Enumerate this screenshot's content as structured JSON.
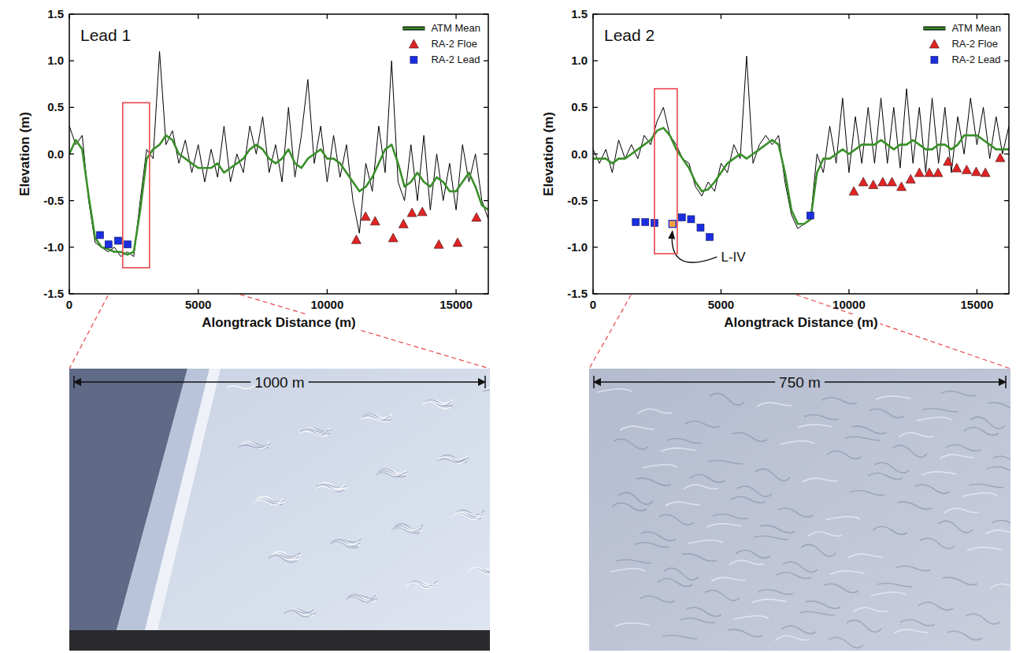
{
  "chart_data": [
    {
      "type": "line",
      "title": "Lead 1",
      "x_label": "Alongtrack Distance (m)",
      "y_label": "Elevation (m)",
      "xlim": [
        0,
        16250
      ],
      "ylim": [
        -1.5,
        1.5
      ],
      "xticks": [
        0,
        5000,
        10000,
        15000
      ],
      "yticks": [
        1.5,
        {
          "value": 1,
          "label": "1.0"
        },
        0.5,
        {
          "value": 0,
          "label": "0.0"
        },
        -0.5,
        {
          "value": -1,
          "label": "-1.0"
        },
        -1.5
      ],
      "legend": "upper right",
      "x": [
        0,
        250,
        500,
        750,
        1000,
        1250,
        1500,
        1750,
        2000,
        2250,
        2500,
        2750,
        3000,
        3250,
        3500,
        3750,
        4000,
        4250,
        4500,
        4750,
        5000,
        5250,
        5500,
        5750,
        6000,
        6250,
        6500,
        6750,
        7000,
        7250,
        7500,
        7750,
        8000,
        8250,
        8500,
        8750,
        9000,
        9250,
        9500,
        9750,
        10000,
        10250,
        10500,
        10750,
        11000,
        11250,
        11500,
        11750,
        12000,
        12250,
        12500,
        12750,
        13000,
        13250,
        13500,
        13750,
        14000,
        14250,
        14500,
        14750,
        15000,
        15250,
        15500,
        15750,
        16000,
        16250
      ],
      "series": [
        {
          "color": "#000000",
          "values": [
            0.3,
            0.1,
            0.2,
            -0.5,
            -0.95,
            -1.0,
            -1.05,
            -1.0,
            -1.1,
            -1.05,
            -1.1,
            -0.5,
            0.05,
            -0.05,
            1.1,
            0.1,
            0.25,
            -0.1,
            0.15,
            -0.2,
            0.1,
            -0.3,
            0.05,
            -0.25,
            0.3,
            -0.3,
            0.0,
            -0.2,
            0.3,
            0.0,
            0.4,
            -0.2,
            0.1,
            -0.3,
            0.5,
            -0.25,
            0.2,
            0.8,
            -0.1,
            0.3,
            -0.3,
            0.2,
            -0.25,
            0.1,
            -0.5,
            -0.85,
            -0.1,
            -0.4,
            0.3,
            -0.2,
            1.0,
            -0.3,
            -0.5,
            0.1,
            -0.5,
            0.2,
            -0.6,
            0.0,
            -0.5,
            -0.1,
            -0.6,
            0.1,
            -0.3,
            0.0,
            -0.5,
            -0.7
          ]
        },
        {
          "name": "ATM Mean",
          "color": "#3a8f2a",
          "values": [
            0.0,
            0.15,
            0.05,
            -0.45,
            -0.9,
            -1.0,
            -1.02,
            -1.05,
            -1.05,
            -1.08,
            -1.05,
            -0.6,
            -0.05,
            0.05,
            0.1,
            0.2,
            0.15,
            0.0,
            -0.05,
            -0.1,
            -0.15,
            -0.15,
            -0.15,
            -0.1,
            -0.2,
            -0.15,
            -0.1,
            -0.05,
            0.05,
            0.1,
            0.05,
            -0.05,
            -0.1,
            -0.05,
            0.05,
            -0.1,
            -0.15,
            -0.05,
            0.0,
            0.05,
            -0.05,
            -0.05,
            -0.1,
            -0.2,
            -0.3,
            -0.4,
            -0.35,
            -0.25,
            -0.1,
            0.05,
            0.1,
            -0.1,
            -0.35,
            -0.3,
            -0.2,
            -0.3,
            -0.35,
            -0.25,
            -0.3,
            -0.4,
            -0.4,
            -0.3,
            -0.2,
            -0.35,
            -0.55,
            -0.6
          ]
        },
        {
          "name": "RA-2 Floe",
          "type": "scatter",
          "marker": "triangle",
          "color": "#e02424",
          "x": [
            11130,
            11490,
            11860,
            12560,
            12960,
            13290,
            13690,
            14330,
            15060,
            15790
          ],
          "values": [
            -0.92,
            -0.67,
            -0.72,
            -0.9,
            -0.75,
            -0.63,
            -0.62,
            -0.97,
            -0.95,
            -0.68
          ]
        },
        {
          "name": "RA-2 Lead",
          "type": "scatter",
          "marker": "square",
          "color": "#1a2ee0",
          "x": [
            1190,
            1520,
            1890,
            2260
          ],
          "values": [
            -0.87,
            -0.97,
            -0.93,
            -0.97
          ]
        }
      ],
      "highlight": {
        "xlim": [
          2070,
          3110
        ],
        "ylim": [
          -1.22,
          0.55
        ]
      },
      "photo": {
        "scale_label": "1000 m"
      }
    },
    {
      "type": "line",
      "title": "Lead 2",
      "x_label": "Alongtrack Distance (m)",
      "y_label": "Elevation (m)",
      "xlim": [
        0,
        16250
      ],
      "ylim": [
        -1.5,
        1.5
      ],
      "xticks": [
        0,
        5000,
        10000,
        15000
      ],
      "yticks": [
        1.5,
        {
          "value": 1,
          "label": "1.0"
        },
        0.5,
        {
          "value": 0,
          "label": "0.0"
        },
        -0.5,
        {
          "value": -1,
          "label": "-1.0"
        },
        -1.5
      ],
      "legend": "upper right",
      "x": [
        0,
        250,
        500,
        750,
        1000,
        1250,
        1500,
        1750,
        2000,
        2250,
        2500,
        2750,
        3000,
        3250,
        3500,
        3750,
        4000,
        4250,
        4500,
        4750,
        5000,
        5250,
        5500,
        5750,
        6000,
        6250,
        6500,
        6750,
        7000,
        7250,
        7500,
        7750,
        8000,
        8250,
        8500,
        8750,
        9000,
        9250,
        9500,
        9750,
        10000,
        10250,
        10500,
        10750,
        11000,
        11250,
        11500,
        11750,
        12000,
        12250,
        12500,
        12750,
        13000,
        13250,
        13500,
        13750,
        14000,
        14250,
        14500,
        14750,
        15000,
        15250,
        15500,
        15750,
        16000,
        16250
      ],
      "series": [
        {
          "color": "#000000",
          "values": [
            0.05,
            -0.1,
            0.05,
            -0.2,
            0.15,
            -0.05,
            0.1,
            -0.05,
            0.2,
            0.1,
            0.35,
            0.5,
            0.2,
            0.1,
            -0.05,
            -0.1,
            -0.35,
            -0.45,
            -0.3,
            -0.4,
            -0.1,
            -0.2,
            0.1,
            -0.05,
            1.05,
            -0.1,
            0.1,
            0.2,
            0.1,
            0.2,
            -0.3,
            -0.65,
            -0.8,
            -0.75,
            -0.7,
            0.0,
            -0.2,
            0.3,
            -0.1,
            0.6,
            -0.2,
            0.4,
            -0.1,
            0.5,
            -0.1,
            0.6,
            -0.1,
            0.5,
            -0.15,
            0.7,
            -0.1,
            0.5,
            -0.2,
            0.6,
            -0.1,
            0.5,
            -0.2,
            0.4,
            0.0,
            0.6,
            0.1,
            0.5,
            -0.05,
            0.4,
            0.0,
            0.3
          ]
        },
        {
          "name": "ATM Mean",
          "color": "#3a8f2a",
          "values": [
            -0.05,
            -0.05,
            -0.05,
            -0.1,
            -0.05,
            -0.05,
            0.0,
            0.05,
            0.1,
            0.15,
            0.25,
            0.28,
            0.2,
            0.05,
            -0.05,
            -0.15,
            -0.3,
            -0.4,
            -0.38,
            -0.3,
            -0.2,
            -0.1,
            -0.05,
            0.0,
            -0.05,
            0.0,
            0.05,
            0.1,
            0.15,
            0.1,
            -0.2,
            -0.6,
            -0.75,
            -0.75,
            -0.7,
            -0.2,
            -0.05,
            -0.05,
            0.0,
            0.05,
            0.0,
            0.05,
            0.1,
            0.1,
            0.1,
            0.15,
            0.1,
            0.05,
            0.1,
            0.1,
            0.15,
            0.1,
            0.05,
            0.05,
            0.1,
            0.1,
            0.05,
            0.1,
            0.2,
            0.2,
            0.2,
            0.15,
            0.1,
            0.05,
            0.05,
            0.05
          ]
        },
        {
          "name": "RA-2 Floe",
          "type": "scatter",
          "marker": "triangle",
          "color": "#e02424",
          "x": [
            10190,
            10560,
            10950,
            11320,
            11680,
            12050,
            12410,
            12750,
            13140,
            13480,
            13870,
            14210,
            14600,
            14970,
            15330,
            15910
          ],
          "values": [
            -0.4,
            -0.3,
            -0.33,
            -0.3,
            -0.3,
            -0.35,
            -0.27,
            -0.2,
            -0.2,
            -0.2,
            -0.08,
            -0.15,
            -0.17,
            -0.19,
            -0.2,
            -0.04
          ]
        },
        {
          "name": "RA-2 Lead",
          "type": "scatter",
          "marker": "square",
          "color": "#1a2ee0",
          "x": [
            1670,
            2040,
            2400,
            3100,
            3470,
            3830,
            4200,
            4560,
            8490
          ],
          "values": [
            -0.73,
            -0.73,
            -0.74,
            -0.75,
            -0.68,
            -0.7,
            -0.79,
            -0.89,
            -0.66
          ]
        }
      ],
      "annotations": [
        {
          "text": "L-IV",
          "x": 3100,
          "y": -0.75,
          "xytext": [
            5000,
            -1.1
          ],
          "color": "#f0a040"
        }
      ],
      "highlight": {
        "xlim": [
          2400,
          3290
        ],
        "ylim": [
          -1.07,
          0.7
        ]
      },
      "photo": {
        "scale_label": "750 m"
      }
    }
  ]
}
